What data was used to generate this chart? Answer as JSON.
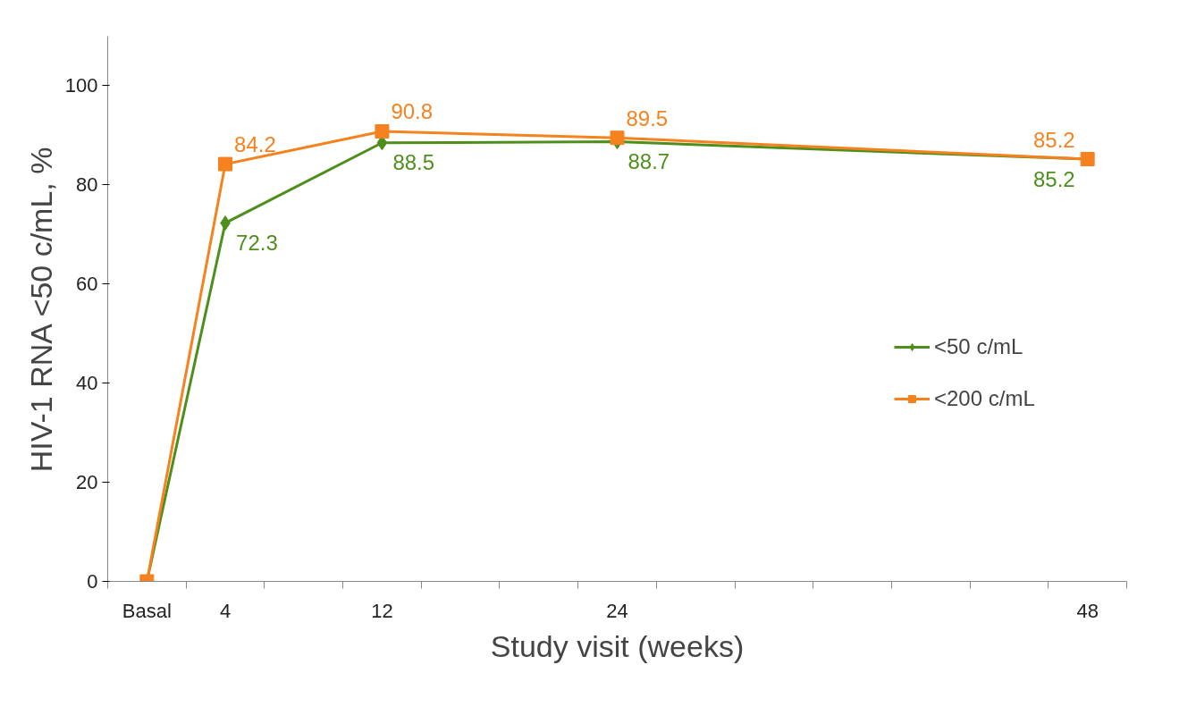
{
  "chart_data": {
    "type": "line",
    "xlabel": "Study visit (weeks)",
    "ylabel": "HIV-1 RNA <50 c/mL, %",
    "x": [
      0,
      4,
      12,
      24,
      48
    ],
    "xlim": [
      -2,
      50
    ],
    "xticks": [
      {
        "value": 0,
        "label": "Basal"
      },
      4,
      12,
      24,
      48,
      {
        "value": -2,
        "label": null
      },
      {
        "value": 2,
        "label": null
      },
      {
        "value": 6,
        "label": null
      },
      {
        "value": 10,
        "label": null
      },
      {
        "value": 14,
        "label": null
      },
      {
        "value": 18,
        "label": null
      },
      {
        "value": 22,
        "label": null
      },
      {
        "value": 26,
        "label": null
      },
      {
        "value": 30,
        "label": null
      },
      {
        "value": 34,
        "label": null
      },
      {
        "value": 38,
        "label": null
      },
      {
        "value": 42,
        "label": null
      },
      {
        "value": 46,
        "label": null
      },
      {
        "value": 50,
        "label": null
      }
    ],
    "ylim": [
      0,
      110
    ],
    "yticks": [
      0,
      20,
      40,
      60,
      80,
      100
    ],
    "series": [
      {
        "name": "<50 c/mL",
        "color": "#4e8f1c",
        "marker": "diamond",
        "values": [
          0,
          72.3,
          88.5,
          88.7,
          85.2
        ],
        "value_labels": [
          null,
          "72.3",
          "88.5",
          "88.7",
          "85.2"
        ]
      },
      {
        "name": "<200 c/mL",
        "color": "#f5821f",
        "marker": "square",
        "values": [
          0,
          84.2,
          90.8,
          89.5,
          85.2
        ],
        "value_labels": [
          null,
          "84.2",
          "90.8",
          "89.5",
          "85.2"
        ]
      }
    ],
    "legend": "right",
    "grid": false,
    "line_style": "solid"
  }
}
